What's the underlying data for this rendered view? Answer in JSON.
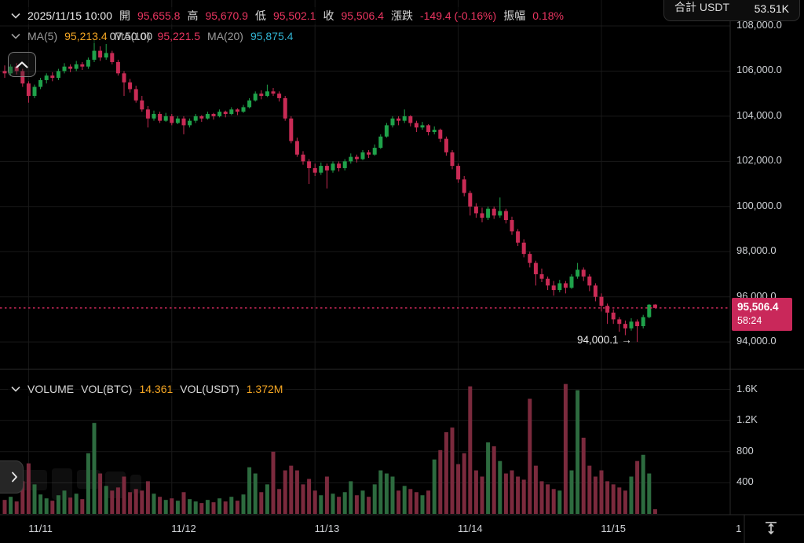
{
  "header": {
    "datetime": "2025/11/15 10:00",
    "fields": [
      {
        "label": "開",
        "value": "95,655.8"
      },
      {
        "label": "高",
        "value": "95,670.9"
      },
      {
        "label": "低",
        "value": "95,502.1"
      },
      {
        "label": "收",
        "value": "95,506.4"
      },
      {
        "label": "漲跌",
        "value": "-149.4 (-0.16%)"
      },
      {
        "label": "振幅",
        "value": "0.18%"
      }
    ]
  },
  "ma_row": {
    "ma5_label": "MA(5)",
    "ma5": "95,213.4",
    "ma10_label": "MA(10)",
    "ma10": "95,221.5",
    "ma20_label": "MA(20)",
    "ma20": "95,875.4",
    "artifact": "07:50.00"
  },
  "total_box": {
    "label": "合計 USDT",
    "value": "53.51K"
  },
  "volume_row": {
    "title": "VOLUME",
    "btc_label": "VOL(BTC)",
    "btc": "14.361",
    "usdt_label": "VOL(USDT)",
    "usdt": "1.372M"
  },
  "price_tag": {
    "price": "95,506.4",
    "countdown": "58:24"
  },
  "low_annotation": "94,000.1 →",
  "price_axis_labels": [
    "108,000.0",
    "106,000.0",
    "104,000.0",
    "102,000.0",
    "100,000.0",
    "98,000.0",
    "96,000.0",
    "94,000.0"
  ],
  "volume_axis_labels": [
    "1.6K",
    "1.2K",
    "800",
    "400"
  ],
  "colors": {
    "up": "#1fa24a",
    "down": "#c92b55",
    "down_text": "#ea3560",
    "down_tag": "#c9285a",
    "orange": "#f5a623",
    "cyan": "#31b3d2",
    "vol_up": "#2d6b3f",
    "vol_down": "#7b2a3d",
    "grid": "#191919",
    "separator": "#2a2a2a",
    "price_line": "#c9285a"
  },
  "chart_data": {
    "type": "candlestick",
    "title": "",
    "price_ylim": [
      94000,
      108000
    ],
    "price_ticks": [
      108000,
      106000,
      104000,
      102000,
      100000,
      98000,
      96000,
      94000
    ],
    "volume_ylim": [
      0,
      1600
    ],
    "volume_ticks": [
      1600,
      1200,
      800,
      400
    ],
    "last_price": 95506.4,
    "countdown": "58:24",
    "low_marker": {
      "value": 94000.1,
      "index": 106
    },
    "time_ticks": [
      {
        "label": "11/11",
        "index": 6
      },
      {
        "label": "11/12",
        "index": 30
      },
      {
        "label": "11/13",
        "index": 54
      },
      {
        "label": "11/14",
        "index": 78
      },
      {
        "label": "11/15",
        "index": 102
      },
      {
        "label": "1",
        "index": 123
      }
    ],
    "grid_indices": [
      4,
      28,
      52,
      76,
      100
    ],
    "candles": [
      [
        106000,
        106250,
        105700,
        105900
      ],
      [
        105900,
        106300,
        105800,
        106200
      ],
      [
        106200,
        106350,
        105850,
        106000
      ],
      [
        106000,
        106100,
        105300,
        105450
      ],
      [
        105450,
        105550,
        104600,
        104900
      ],
      [
        104900,
        105400,
        104800,
        105300
      ],
      [
        105300,
        105700,
        105200,
        105600
      ],
      [
        105600,
        105900,
        105450,
        105800
      ],
      [
        105800,
        105950,
        105550,
        105700
      ],
      [
        105700,
        106100,
        105600,
        106000
      ],
      [
        106000,
        106350,
        105900,
        106200
      ],
      [
        106200,
        106300,
        105950,
        106100
      ],
      [
        106100,
        106450,
        106000,
        106300
      ],
      [
        106300,
        106400,
        106050,
        106200
      ],
      [
        106200,
        106600,
        106100,
        106500
      ],
      [
        106500,
        107400,
        106400,
        106900
      ],
      [
        106900,
        107100,
        106450,
        106600
      ],
      [
        106600,
        107200,
        106500,
        106800
      ],
      [
        106800,
        106900,
        106300,
        106400
      ],
      [
        106400,
        106500,
        105800,
        105900
      ],
      [
        105900,
        106000,
        104900,
        105500
      ],
      [
        105500,
        105650,
        105050,
        105200
      ],
      [
        105200,
        105350,
        104600,
        104700
      ],
      [
        104700,
        104900,
        104200,
        104300
      ],
      [
        104300,
        104450,
        103500,
        103900
      ],
      [
        103900,
        104250,
        103800,
        104100
      ],
      [
        104100,
        104200,
        103700,
        103800
      ],
      [
        103800,
        104150,
        103750,
        104000
      ],
      [
        104000,
        104100,
        103600,
        103700
      ],
      [
        103700,
        104000,
        103650,
        103900
      ],
      [
        103900,
        104000,
        103200,
        103600
      ],
      [
        103600,
        103900,
        103500,
        103800
      ],
      [
        103800,
        104100,
        103700,
        104000
      ],
      [
        104000,
        104050,
        103750,
        103900
      ],
      [
        103900,
        104200,
        103850,
        104100
      ],
      [
        104100,
        104150,
        103850,
        104000
      ],
      [
        104000,
        104300,
        103950,
        104200
      ],
      [
        104200,
        104250,
        103950,
        104100
      ],
      [
        104100,
        104400,
        104050,
        104300
      ],
      [
        104300,
        104350,
        104050,
        104200
      ],
      [
        104200,
        104500,
        104150,
        104400
      ],
      [
        104400,
        104800,
        104350,
        104700
      ],
      [
        104700,
        105100,
        104650,
        105000
      ],
      [
        105000,
        105150,
        104750,
        104900
      ],
      [
        104900,
        105400,
        104850,
        105100
      ],
      [
        105100,
        105250,
        104900,
        105000
      ],
      [
        105000,
        105100,
        104650,
        104800
      ],
      [
        104800,
        104900,
        103800,
        103900
      ],
      [
        103900,
        104000,
        102800,
        102900
      ],
      [
        102900,
        103050,
        102200,
        102300
      ],
      [
        102300,
        102450,
        101850,
        102000
      ],
      [
        102000,
        102100,
        101000,
        101700
      ],
      [
        101700,
        101900,
        101350,
        101500
      ],
      [
        101500,
        101950,
        101400,
        101800
      ],
      [
        101800,
        101900,
        100800,
        101600
      ],
      [
        101600,
        102000,
        101500,
        101900
      ],
      [
        101900,
        102000,
        101550,
        101700
      ],
      [
        101700,
        102100,
        101600,
        102000
      ],
      [
        102000,
        102350,
        101900,
        102200
      ],
      [
        102200,
        102300,
        101950,
        102100
      ],
      [
        102100,
        102500,
        102050,
        102400
      ],
      [
        102400,
        102500,
        102150,
        102300
      ],
      [
        102300,
        102750,
        102250,
        102600
      ],
      [
        102600,
        103200,
        102550,
        103100
      ],
      [
        103100,
        103700,
        103050,
        103600
      ],
      [
        103600,
        104000,
        103500,
        103900
      ],
      [
        103900,
        104000,
        103600,
        103800
      ],
      [
        103800,
        104300,
        103700,
        104000
      ],
      [
        104000,
        104050,
        103550,
        103700
      ],
      [
        103700,
        103800,
        103300,
        103500
      ],
      [
        103500,
        103750,
        103400,
        103600
      ],
      [
        103600,
        103650,
        103150,
        103300
      ],
      [
        103300,
        103550,
        103200,
        103400
      ],
      [
        103400,
        103450,
        102850,
        103000
      ],
      [
        103000,
        103100,
        102250,
        102400
      ],
      [
        102400,
        102500,
        101650,
        101800
      ],
      [
        101800,
        101900,
        101050,
        101200
      ],
      [
        101200,
        101350,
        100450,
        100600
      ],
      [
        100600,
        100700,
        99600,
        100000
      ],
      [
        100000,
        100150,
        99500,
        99700
      ],
      [
        99700,
        99950,
        99300,
        99500
      ],
      [
        99500,
        100000,
        99400,
        99900
      ],
      [
        99900,
        100000,
        99450,
        99600
      ],
      [
        99600,
        100400,
        99500,
        99800
      ],
      [
        99800,
        99900,
        99250,
        99400
      ],
      [
        99400,
        99550,
        98750,
        98900
      ],
      [
        98900,
        99000,
        98250,
        98400
      ],
      [
        98400,
        98550,
        97750,
        97900
      ],
      [
        97900,
        98000,
        97300,
        97500
      ],
      [
        97500,
        97600,
        96500,
        97000
      ],
      [
        97000,
        97250,
        96650,
        96800
      ],
      [
        96800,
        96900,
        96300,
        96500
      ],
      [
        96500,
        96700,
        96050,
        96300
      ],
      [
        96300,
        96750,
        96200,
        96600
      ],
      [
        96600,
        96700,
        96150,
        96400
      ],
      [
        96400,
        97000,
        96350,
        96900
      ],
      [
        96900,
        97500,
        96800,
        97200
      ],
      [
        97200,
        97300,
        96700,
        96900
      ],
      [
        96900,
        97000,
        96250,
        96500
      ],
      [
        96500,
        96600,
        95800,
        96000
      ],
      [
        96000,
        96150,
        95350,
        95600
      ],
      [
        95600,
        95700,
        94800,
        95300
      ],
      [
        95300,
        95450,
        94800,
        95000
      ],
      [
        95000,
        95100,
        94450,
        94800
      ],
      [
        94800,
        94950,
        94300,
        94600
      ],
      [
        94600,
        95050,
        94500,
        94900
      ],
      [
        94900,
        95000,
        94000.1,
        94700
      ],
      [
        94700,
        95200,
        94600,
        95100
      ],
      [
        95100,
        95680,
        95050,
        95650
      ],
      [
        95655.8,
        95670.9,
        95502.1,
        95506.4
      ]
    ],
    "volumes": [
      180,
      220,
      160,
      420,
      650,
      380,
      250,
      200,
      170,
      240,
      300,
      210,
      260,
      190,
      780,
      1170,
      520,
      360,
      300,
      340,
      480,
      280,
      320,
      300,
      420,
      260,
      220,
      180,
      200,
      170,
      280,
      190,
      160,
      140,
      180,
      150,
      200,
      160,
      220,
      170,
      250,
      600,
      520,
      280,
      380,
      800,
      320,
      560,
      620,
      560,
      380,
      450,
      300,
      240,
      480,
      260,
      220,
      280,
      420,
      240,
      300,
      220,
      380,
      560,
      520,
      480,
      300,
      360,
      320,
      280,
      240,
      300,
      700,
      820,
      1050,
      1110,
      640,
      780,
      1640,
      560,
      480,
      920,
      870,
      680,
      520,
      560,
      480,
      440,
      1480,
      620,
      420,
      380,
      320,
      300,
      1670,
      560,
      1590,
      980,
      620,
      480,
      560,
      420,
      380,
      340,
      300,
      480,
      680,
      760,
      520,
      60
    ]
  }
}
